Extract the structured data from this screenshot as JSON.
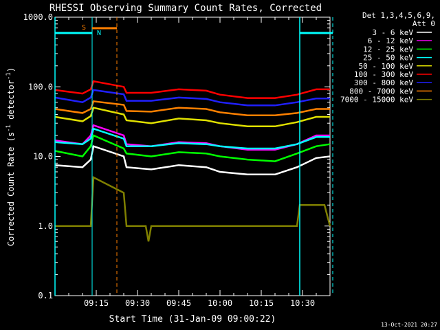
{
  "chart_data": {
    "type": "line",
    "title": "RHESSI Observing Summary Count Rates, Corrected",
    "xlabel": "Start Time (31-Jan-09 09:00:22)",
    "ylabel_main": "Corrected Count Rate (s",
    "ylabel_sup1": "-1",
    "ylabel_mid": " detector",
    "ylabel_sup2": "-1",
    "ylabel_end": ")",
    "y_scale": "log",
    "ylim": [
      0.1,
      1000
    ],
    "xlim_minutes": [
      0,
      100
    ],
    "y_ticks": [
      {
        "value": 0.1,
        "label": "0.1"
      },
      {
        "value": 1,
        "label": "1.0"
      },
      {
        "value": 10,
        "label": "10.0"
      },
      {
        "value": 100,
        "label": "100.0"
      },
      {
        "value": 1000,
        "label": "1000.0"
      }
    ],
    "x_ticks": [
      {
        "minute": 15,
        "label": "09:15"
      },
      {
        "minute": 30,
        "label": "09:30"
      },
      {
        "minute": 45,
        "label": "09:45"
      },
      {
        "minute": 60,
        "label": "10:00"
      },
      {
        "minute": 75,
        "label": "10:15"
      },
      {
        "minute": 90,
        "label": "10:30"
      }
    ],
    "legend": {
      "placement": "right",
      "header1": "Det 1,3,4,5,6,9,",
      "header2": "Att 0",
      "entries": [
        {
          "label": "3 - 6 keV",
          "color": "#ffffff"
        },
        {
          "label": "6 - 12 keV",
          "color": "#ff00ff"
        },
        {
          "label": "12 - 25 keV",
          "color": "#00ff00"
        },
        {
          "label": "25 - 50 keV",
          "color": "#00ffff"
        },
        {
          "label": "50 - 100 keV",
          "color": "#e0e000"
        },
        {
          "label": "100 - 300 keV",
          "color": "#ff0000"
        },
        {
          "label": "300 - 800 keV",
          "color": "#2020ff"
        },
        {
          "label": "800 - 7000 keV",
          "color": "#ff8000"
        },
        {
          "label": "7000 - 15000 keV",
          "color": "#808000"
        }
      ]
    },
    "series": [
      {
        "name": "3 - 6 keV",
        "color": "#000000",
        "points": [
          [
            0,
            7.5
          ],
          [
            10,
            7
          ],
          [
            13,
            9
          ],
          [
            14,
            14
          ],
          [
            25,
            10
          ],
          [
            26,
            7
          ],
          [
            35,
            6.5
          ],
          [
            45,
            7.5
          ],
          [
            55,
            7
          ],
          [
            60,
            6
          ],
          [
            70,
            5.5
          ],
          [
            80,
            5.5
          ],
          [
            88,
            7
          ],
          [
            95,
            9.5
          ],
          [
            100,
            10
          ]
        ]
      },
      {
        "name": "6 - 12 keV",
        "color": "#ff00ff",
        "points": [
          [
            0,
            17
          ],
          [
            10,
            15
          ],
          [
            13,
            20
          ],
          [
            14,
            28
          ],
          [
            25,
            20
          ],
          [
            26,
            15
          ],
          [
            35,
            14
          ],
          [
            45,
            16
          ],
          [
            55,
            15.5
          ],
          [
            60,
            14
          ],
          [
            70,
            12.5
          ],
          [
            80,
            12.5
          ],
          [
            88,
            15
          ],
          [
            95,
            20
          ],
          [
            100,
            20
          ]
        ]
      },
      {
        "name": "12 - 25 keV",
        "color": "#00ff00",
        "points": [
          [
            0,
            12
          ],
          [
            10,
            10
          ],
          [
            13,
            14
          ],
          [
            14,
            20
          ],
          [
            25,
            13
          ],
          [
            26,
            11
          ],
          [
            35,
            10
          ],
          [
            45,
            11.5
          ],
          [
            55,
            11
          ],
          [
            60,
            10
          ],
          [
            70,
            9
          ],
          [
            80,
            8.5
          ],
          [
            88,
            11
          ],
          [
            95,
            14
          ],
          [
            100,
            15
          ]
        ]
      },
      {
        "name": "25 - 50 keV",
        "color": "#00ffff",
        "points": [
          [
            0,
            16
          ],
          [
            10,
            15
          ],
          [
            13,
            18
          ],
          [
            14,
            25
          ],
          [
            25,
            18
          ],
          [
            26,
            14
          ],
          [
            35,
            14
          ],
          [
            45,
            15.5
          ],
          [
            55,
            15
          ],
          [
            60,
            14
          ],
          [
            70,
            13
          ],
          [
            80,
            13
          ],
          [
            88,
            15
          ],
          [
            95,
            19
          ],
          [
            100,
            19
          ]
        ]
      },
      {
        "name": "50 - 100 keV",
        "color": "#e0e000",
        "points": [
          [
            0,
            37
          ],
          [
            10,
            32
          ],
          [
            13,
            38
          ],
          [
            14,
            50
          ],
          [
            25,
            40
          ],
          [
            26,
            33
          ],
          [
            35,
            30
          ],
          [
            45,
            35
          ],
          [
            55,
            33
          ],
          [
            60,
            30
          ],
          [
            70,
            27
          ],
          [
            80,
            27
          ],
          [
            88,
            31
          ],
          [
            95,
            37
          ],
          [
            100,
            37
          ]
        ]
      },
      {
        "name": "100 - 300 keV",
        "color": "#ff0000",
        "points": [
          [
            0,
            90
          ],
          [
            10,
            80
          ],
          [
            13,
            92
          ],
          [
            14,
            120
          ],
          [
            25,
            100
          ],
          [
            26,
            82
          ],
          [
            35,
            82
          ],
          [
            45,
            92
          ],
          [
            55,
            88
          ],
          [
            60,
            77
          ],
          [
            70,
            69
          ],
          [
            80,
            69
          ],
          [
            88,
            77
          ],
          [
            95,
            92
          ],
          [
            100,
            92
          ]
        ]
      },
      {
        "name": "300 - 800 keV",
        "color": "#2020ff",
        "points": [
          [
            0,
            70
          ],
          [
            10,
            60
          ],
          [
            13,
            70
          ],
          [
            14,
            90
          ],
          [
            25,
            78
          ],
          [
            26,
            63
          ],
          [
            35,
            63
          ],
          [
            45,
            70
          ],
          [
            55,
            67
          ],
          [
            60,
            60
          ],
          [
            70,
            54
          ],
          [
            80,
            54
          ],
          [
            88,
            60
          ],
          [
            95,
            68
          ],
          [
            100,
            68
          ]
        ]
      },
      {
        "name": "800 - 7000 keV",
        "color": "#ff8000",
        "points": [
          [
            0,
            48
          ],
          [
            10,
            42
          ],
          [
            13,
            48
          ],
          [
            14,
            62
          ],
          [
            25,
            55
          ],
          [
            26,
            45
          ],
          [
            35,
            44
          ],
          [
            45,
            50
          ],
          [
            55,
            48
          ],
          [
            60,
            43
          ],
          [
            70,
            39
          ],
          [
            80,
            39
          ],
          [
            88,
            42
          ],
          [
            95,
            48
          ],
          [
            100,
            48
          ]
        ]
      },
      {
        "name": "7000 - 15000 keV",
        "color": "#808000",
        "points": [
          [
            0,
            1
          ],
          [
            13,
            1
          ],
          [
            14,
            5
          ],
          [
            25,
            3
          ],
          [
            26,
            1
          ],
          [
            33,
            1
          ],
          [
            34,
            0.6
          ],
          [
            35,
            1
          ],
          [
            85,
            1
          ],
          [
            88,
            1
          ],
          [
            89,
            2
          ],
          [
            98,
            2
          ],
          [
            100,
            1
          ]
        ]
      }
    ],
    "flag_labels": [
      {
        "text": "S",
        "color": "#ff8000"
      },
      {
        "text": "N",
        "color": "#00ffff"
      }
    ]
  },
  "timestamp": "13-Oct-2021 20:27"
}
